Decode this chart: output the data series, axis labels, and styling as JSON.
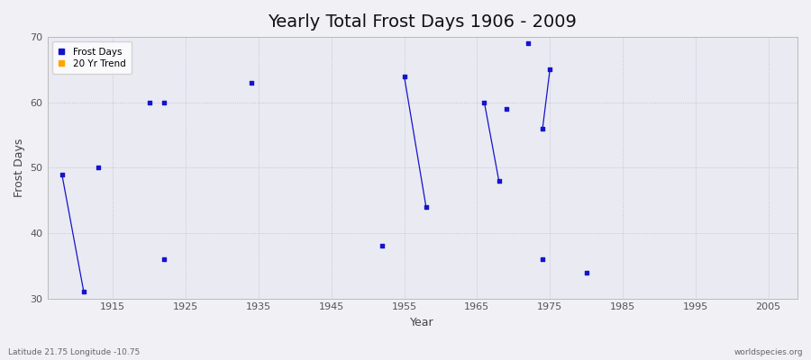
{
  "title": "Yearly Total Frost Days 1906 - 2009",
  "xlabel": "Year",
  "ylabel": "Frost Days",
  "xlim": [
    1906,
    2009
  ],
  "ylim": [
    30,
    70
  ],
  "yticks": [
    30,
    40,
    50,
    60,
    70
  ],
  "xticks": [
    1915,
    1925,
    1935,
    1945,
    1955,
    1965,
    1975,
    1985,
    1995,
    2005
  ],
  "background_color": "#f0f0f5",
  "plot_bg_color": "#eaeaf2",
  "frost_days_color": "#1414cc",
  "trend_color": "#ffa500",
  "scatter_marker": "s",
  "scatter_size": 10,
  "frost_points": [
    [
      1908,
      49
    ],
    [
      1911,
      31
    ],
    [
      1913,
      50
    ],
    [
      1920,
      60
    ],
    [
      1922,
      60
    ],
    [
      1922,
      36
    ],
    [
      1934,
      63
    ],
    [
      1952,
      38
    ],
    [
      1955,
      64
    ],
    [
      1958,
      44
    ],
    [
      1966,
      60
    ],
    [
      1968,
      48
    ],
    [
      1969,
      59
    ],
    [
      1972,
      69
    ],
    [
      1974,
      56
    ],
    [
      1974,
      36
    ],
    [
      1975,
      65
    ],
    [
      1980,
      34
    ]
  ],
  "line_segments": [
    [
      [
        1908,
        49
      ],
      [
        1911,
        31
      ]
    ],
    [
      [
        1955,
        64
      ],
      [
        1958,
        44
      ]
    ],
    [
      [
        1966,
        60
      ],
      [
        1968,
        48
      ]
    ],
    [
      [
        1974,
        56
      ],
      [
        1975,
        65
      ]
    ]
  ],
  "bottom_left_text": "Latitude 21.75 Longitude -10.75",
  "bottom_right_text": "worldspecies.org",
  "legend_entries": [
    "Frost Days",
    "20 Yr Trend"
  ],
  "legend_colors": [
    "#1414cc",
    "#ffa500"
  ],
  "title_fontsize": 14,
  "tick_labelsize": 8,
  "axis_label_fontsize": 9
}
